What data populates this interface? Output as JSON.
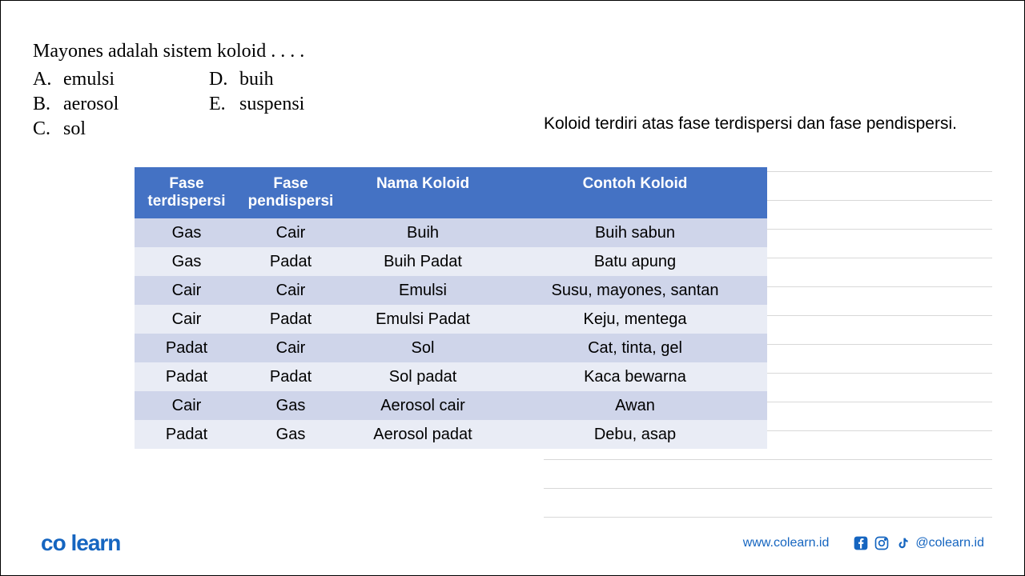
{
  "question": {
    "text": "Mayones  adalah  sistem  koloid  .  .  .  .",
    "options": [
      {
        "label": "A.",
        "text": "emulsi"
      },
      {
        "label": "B.",
        "text": "aerosol"
      },
      {
        "label": "C.",
        "text": "sol"
      },
      {
        "label": "D.",
        "text": "buih"
      },
      {
        "label": "E.",
        "text": "suspensi"
      }
    ]
  },
  "explanation": "Koloid terdiri atas fase terdispersi dan fase pendispersi.",
  "table": {
    "columns": [
      "Fase terdispersi",
      "Fase pendispersi",
      "Nama Koloid",
      "Contoh Koloid"
    ],
    "rows": [
      [
        "Gas",
        "Cair",
        "Buih",
        "Buih sabun"
      ],
      [
        "Gas",
        "Padat",
        "Buih Padat",
        "Batu apung"
      ],
      [
        "Cair",
        "Cair",
        "Emulsi",
        "Susu, mayones, santan"
      ],
      [
        "Cair",
        "Padat",
        "Emulsi Padat",
        "Keju, mentega"
      ],
      [
        "Padat",
        "Cair",
        "Sol",
        "Cat, tinta, gel"
      ],
      [
        "Padat",
        "Padat",
        "Sol padat",
        "Kaca bewarna"
      ],
      [
        "Cair",
        "Gas",
        "Aerosol cair",
        "Awan"
      ],
      [
        "Padat",
        "Gas",
        "Aerosol padat",
        "Debu, asap"
      ]
    ],
    "header_bg": "#4472c4",
    "header_color": "#ffffff",
    "row_odd_bg": "#cfd5ea",
    "row_even_bg": "#e9ecf5",
    "font_size": 20
  },
  "footer": {
    "logo_co": "co",
    "logo_learn": "learn",
    "website": "www.colearn.id",
    "handle": "@colearn.id"
  },
  "colors": {
    "brand": "#1565c0",
    "table_header": "#4472c4"
  }
}
